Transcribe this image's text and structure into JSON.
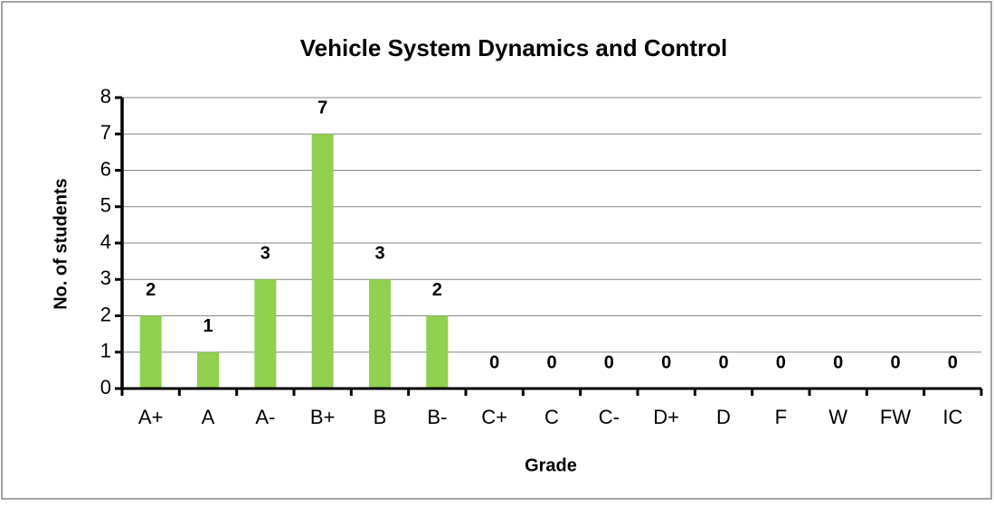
{
  "chart_data": {
    "type": "bar",
    "title": "Vehicle System Dynamics and Control",
    "x_label": "Grade",
    "y_label": "No. of students",
    "categories": [
      "A+",
      "A",
      "A-",
      "B+",
      "B",
      "B-",
      "C+",
      "C",
      "C-",
      "D+",
      "D",
      "F",
      "W",
      "FW",
      "IC"
    ],
    "values": [
      2,
      1,
      3,
      7,
      3,
      2,
      0,
      0,
      0,
      0,
      0,
      0,
      0,
      0,
      0
    ],
    "color": "#92d050",
    "ylim": [
      0,
      8
    ],
    "yticks": [
      0,
      1,
      2,
      3,
      4,
      5,
      6,
      7,
      8
    ],
    "grid": true
  }
}
